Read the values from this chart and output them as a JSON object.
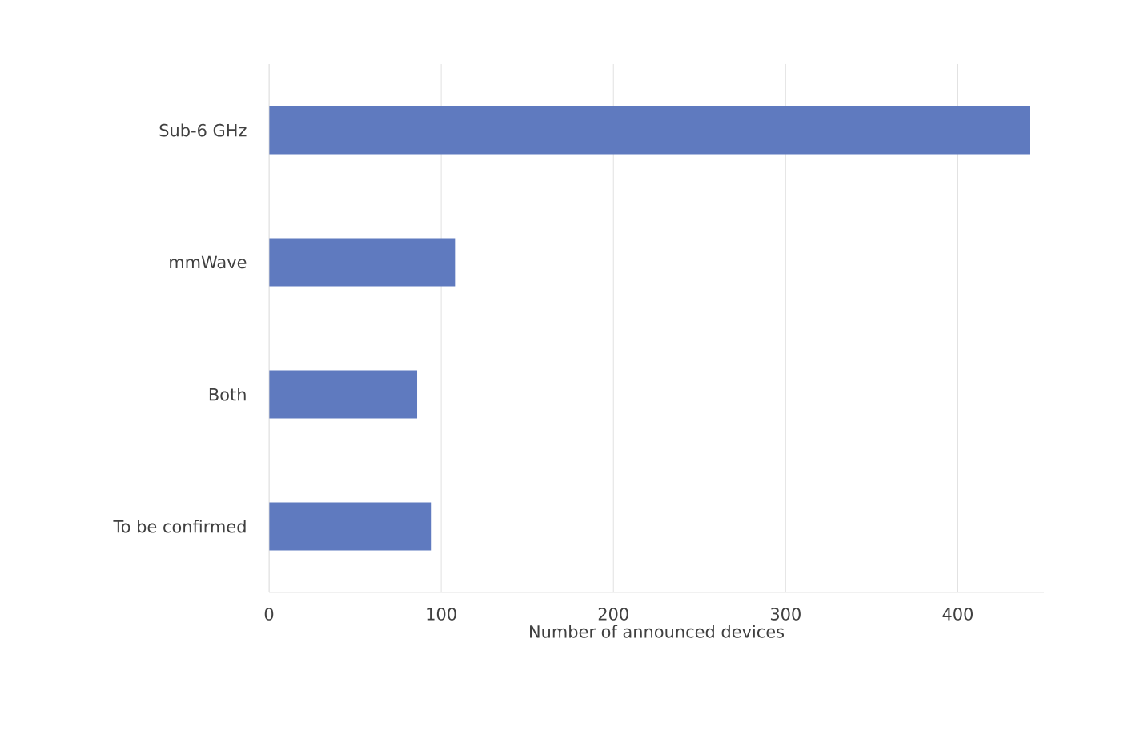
{
  "chart_data": {
    "type": "bar",
    "orientation": "horizontal",
    "categories": [
      "Sub-6 GHz",
      "mmWave",
      "Both",
      "To be confirmed"
    ],
    "values": [
      442,
      108,
      86,
      94
    ],
    "color": "#5f7abf",
    "xlabel": "Number of announced devices",
    "xlim": [
      0,
      450
    ],
    "xticks": [
      0,
      100,
      200,
      300,
      400
    ],
    "grid": "x"
  }
}
